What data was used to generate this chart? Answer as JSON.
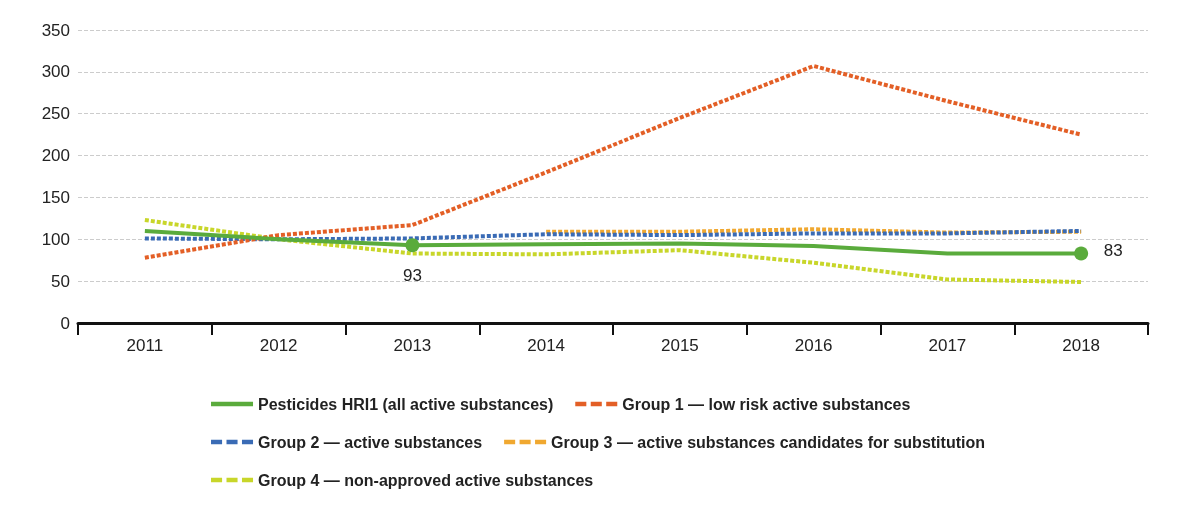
{
  "chart_data": {
    "type": "line",
    "categories": [
      "2011",
      "2012",
      "2013",
      "2014",
      "2015",
      "2016",
      "2017",
      "2018"
    ],
    "series": [
      {
        "name": "Pesticides HRI1 (all active substances)",
        "color": "#5aab3c",
        "line_style": "solid",
        "values": [
          110,
          100,
          93,
          94,
          95,
          92,
          83,
          83
        ],
        "value_labels": [
          null,
          null,
          "93",
          null,
          null,
          null,
          null,
          "83"
        ]
      },
      {
        "name": "Group 1 — low risk active substances",
        "color": "#e35f26",
        "line_style": "dashed",
        "marker": "none",
        "values": [
          78,
          105,
          117,
          180,
          245,
          307,
          265,
          225
        ]
      },
      {
        "name": "Group 2 — active substances",
        "color": "#3a6bb5",
        "line_style": "dashed",
        "marker": "none",
        "values": [
          101,
          100,
          101,
          106,
          105,
          107,
          107,
          110
        ]
      },
      {
        "name": "Group 3 — active substances candidates for substitution",
        "color": "#f0a830",
        "line_style": "dashed",
        "marker": "none",
        "values": [
          null,
          null,
          null,
          109,
          109,
          112,
          108,
          109
        ]
      },
      {
        "name": "Group 4 — non-approved active substances",
        "color": "#c8d62a",
        "line_style": "dashed",
        "marker": "none",
        "values": [
          123,
          100,
          83,
          82,
          87,
          72,
          52,
          49
        ]
      }
    ],
    "ylim": [
      0,
      350
    ],
    "yticks": [
      0,
      50,
      100,
      150,
      200,
      250,
      300,
      350
    ],
    "grid": "y",
    "legend": "bottom"
  }
}
